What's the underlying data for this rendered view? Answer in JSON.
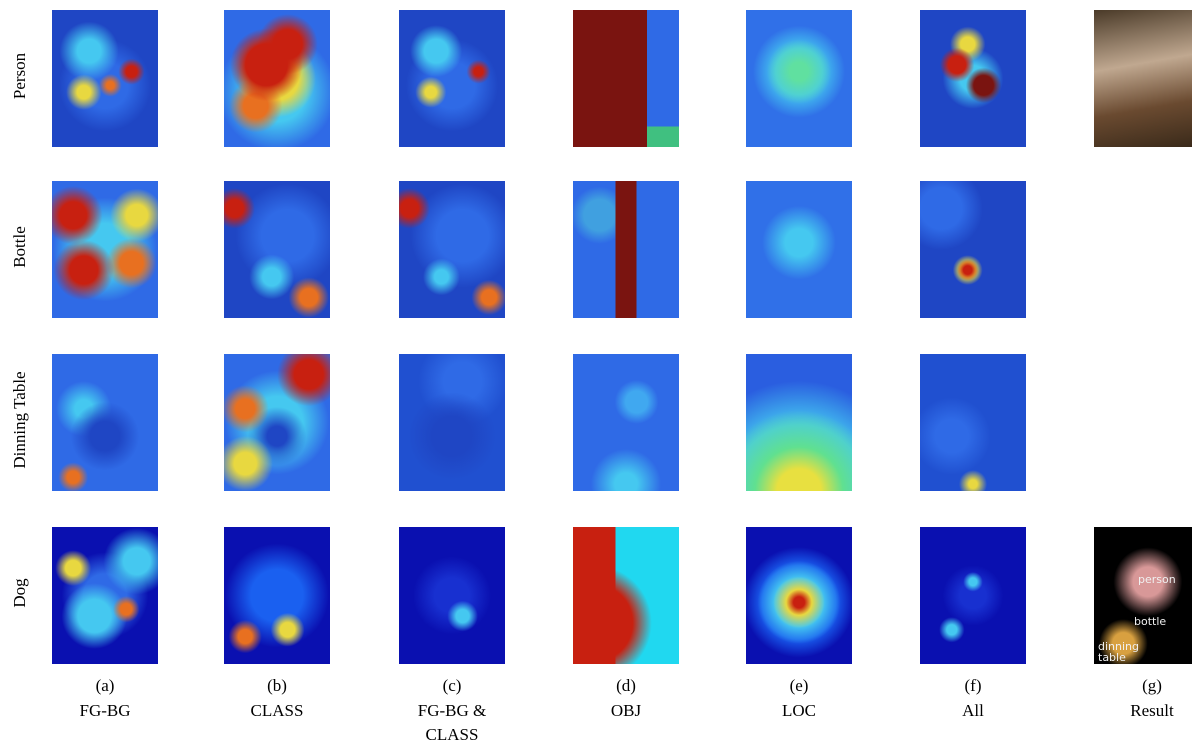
{
  "rows": [
    "Person",
    "Bottle",
    "Dinning Table",
    "Dog"
  ],
  "columns": [
    {
      "letter": "(a)",
      "name": "FG-BG"
    },
    {
      "letter": "(b)",
      "name": "CLASS"
    },
    {
      "letter": "(c)",
      "name": "FG-BG & CLASS"
    },
    {
      "letter": "(d)",
      "name": "OBJ"
    },
    {
      "letter": "(e)",
      "name": "LOC"
    },
    {
      "letter": "(f)",
      "name": "All"
    },
    {
      "letter": "(g)",
      "name": "Result"
    }
  ],
  "result_labels": [
    "person",
    "bottle",
    "dinning table"
  ]
}
